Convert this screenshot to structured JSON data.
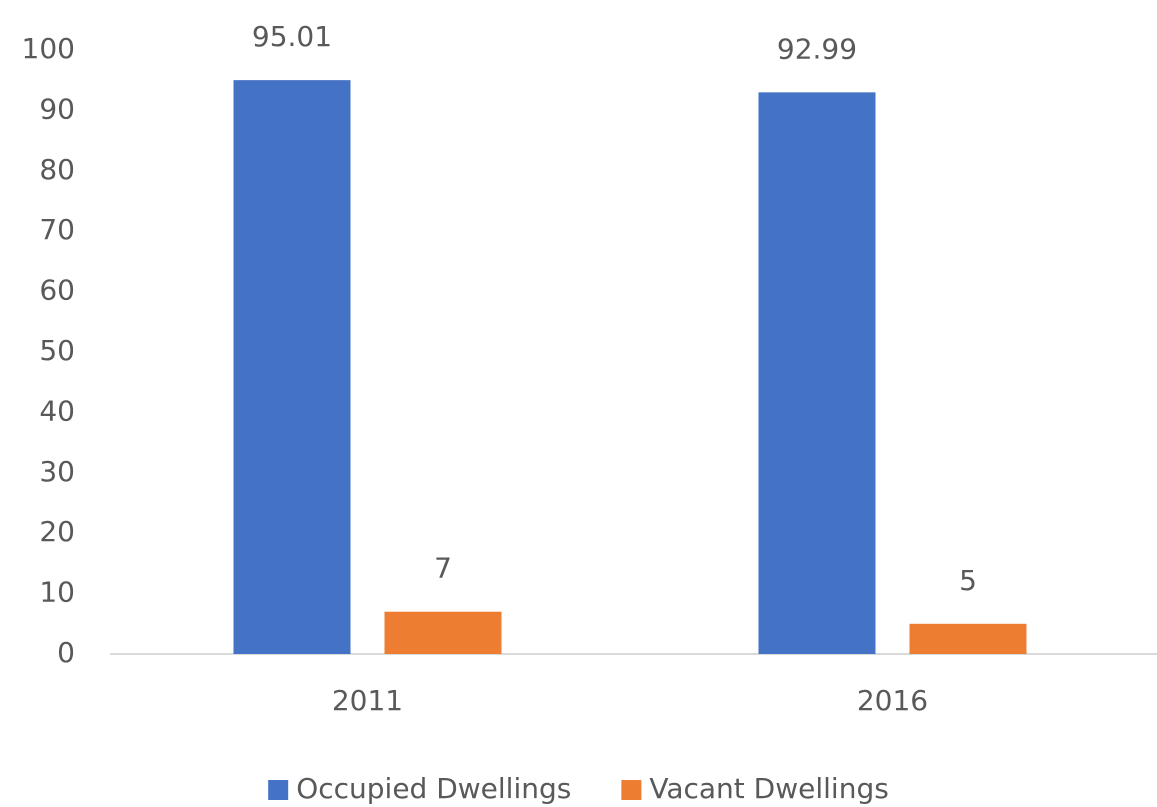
{
  "chart_data": {
    "type": "bar",
    "categories": [
      "2011",
      "2016"
    ],
    "series": [
      {
        "name": "Occupied Dwellings",
        "color": "#4472c4",
        "values": [
          95.01,
          92.99
        ]
      },
      {
        "name": "Vacant Dwellings",
        "color": "#ed7d31",
        "values": [
          7,
          5
        ]
      }
    ],
    "ylim": [
      0,
      100
    ],
    "yticks": [
      0,
      10,
      20,
      30,
      40,
      50,
      60,
      70,
      80,
      90,
      100
    ],
    "grid": false,
    "legend": "bottom"
  }
}
